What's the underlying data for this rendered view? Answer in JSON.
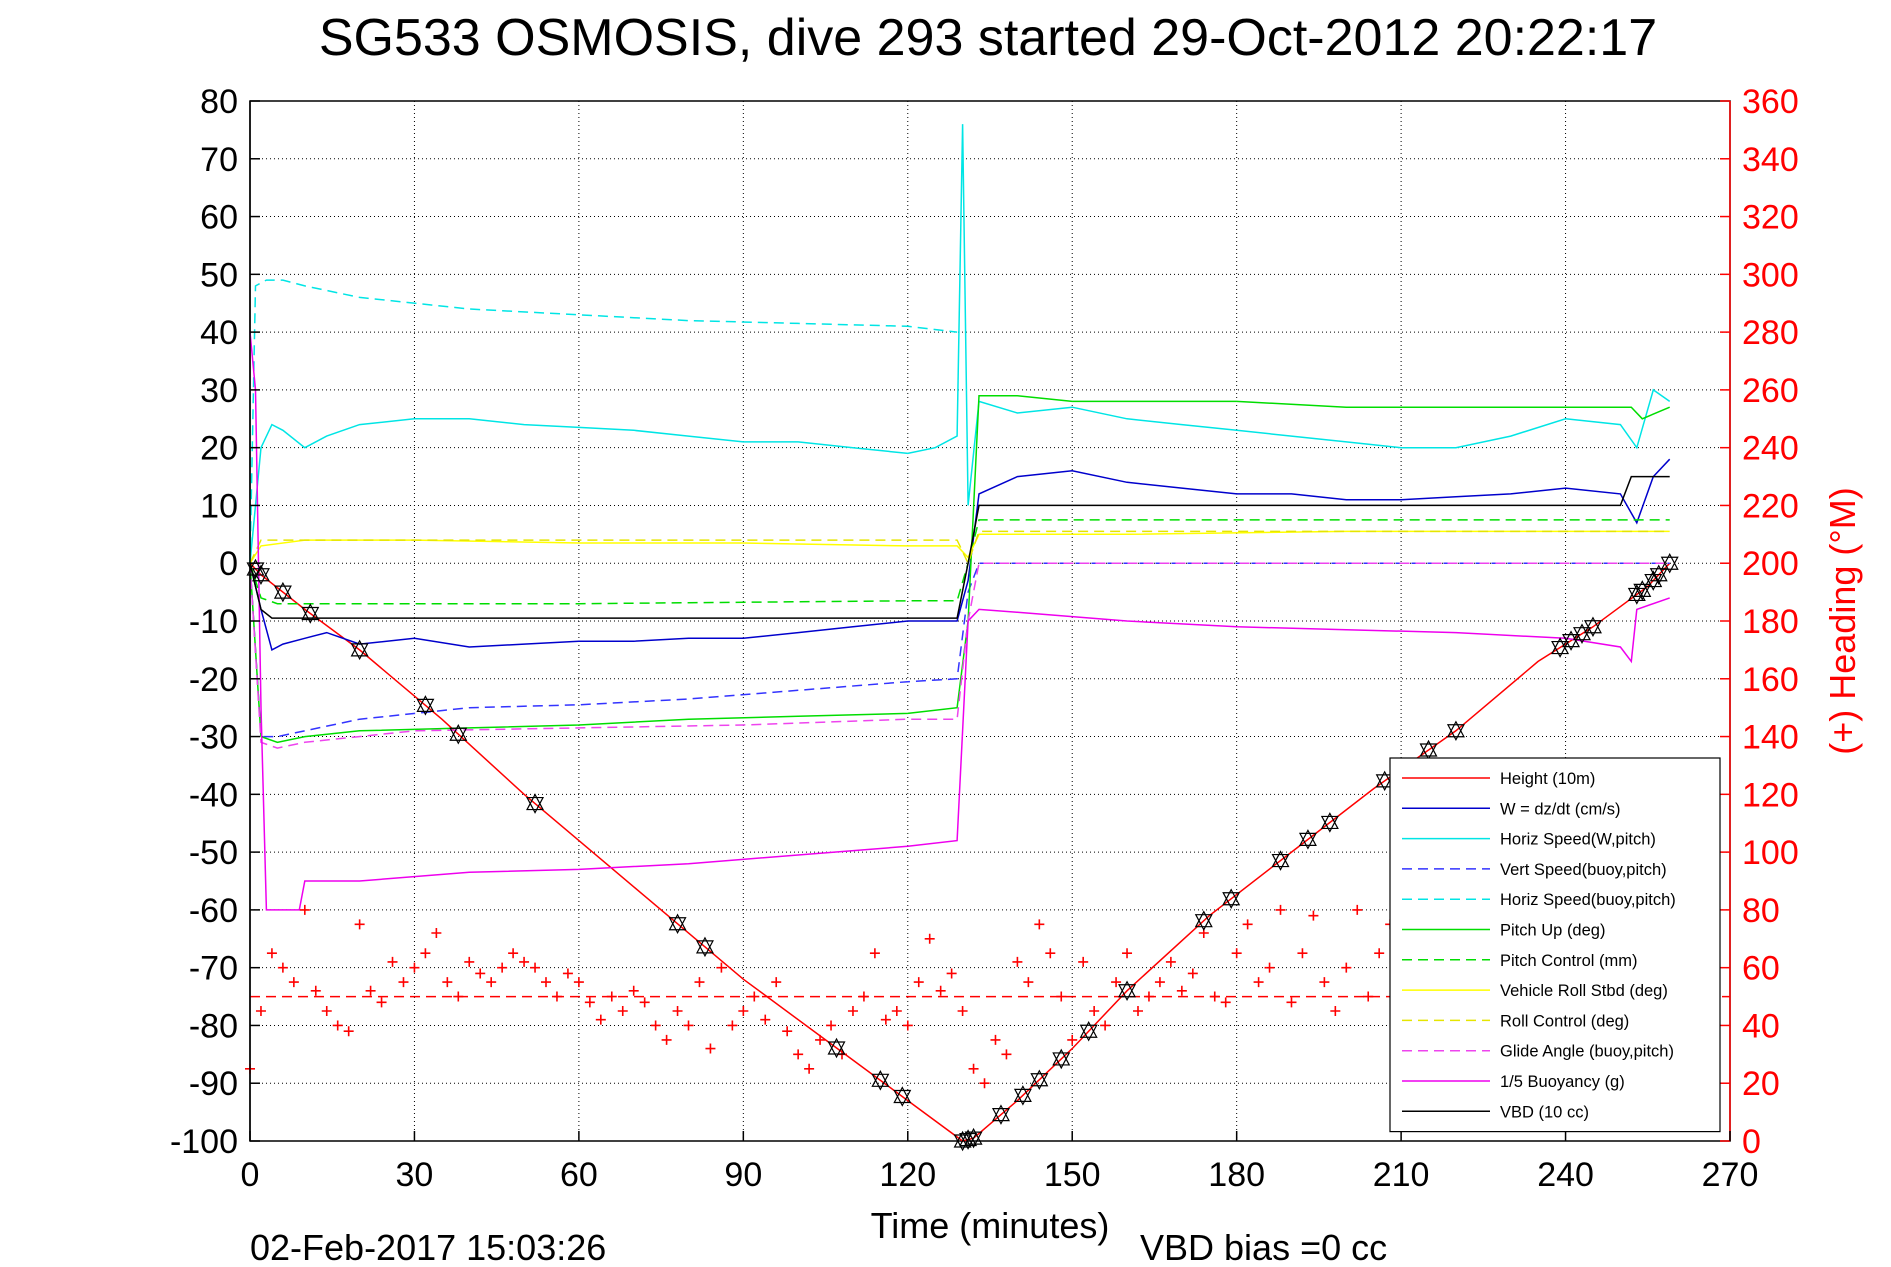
{
  "chart_data": {
    "type": "line",
    "title": "SG533 OSMOSIS, dive 293 started 29-Oct-2012 20:22:17",
    "xlabel": "Time (minutes)",
    "ylabel": "",
    "y2label": "(+) Heading (°M)",
    "xlim": [
      0,
      270
    ],
    "ylim": [
      -100,
      80
    ],
    "y2lim": [
      0,
      360
    ],
    "xticks": [
      0,
      30,
      60,
      90,
      120,
      150,
      180,
      210,
      240,
      270
    ],
    "yticks": [
      80,
      70,
      60,
      50,
      40,
      30,
      20,
      10,
      0,
      -10,
      -20,
      -30,
      -40,
      -50,
      -60,
      -70,
      -80,
      -90,
      -100
    ],
    "y2ticks": [
      360,
      340,
      320,
      300,
      280,
      260,
      240,
      220,
      200,
      180,
      160,
      140,
      120,
      100,
      80,
      60,
      40,
      20,
      0
    ],
    "grid": true,
    "legend_position": "bottom-right",
    "colors": {
      "height": "#ff0000",
      "w": "#0000cc",
      "horiz_speed": "#00e5e5",
      "vert_speed_buoy": "#3333ff",
      "horiz_speed_buoy": "#00e5e5",
      "pitch": "#00dd00",
      "pitch_control": "#00dd00",
      "roll": "#ffff00",
      "roll_control": "#e5e500",
      "glide_angle": "#ee44ee",
      "buoyancy": "#ee00ee",
      "vbd": "#000000",
      "heading": "#ff0000"
    },
    "series": [
      {
        "name": "Height (10m)",
        "style": "solid",
        "color": "#ff0000",
        "x": [
          0,
          2,
          10,
          20,
          35,
          50,
          70,
          90,
          110,
          120,
          130,
          132,
          140,
          150,
          160,
          175,
          190,
          205,
          220,
          235,
          245,
          255,
          259
        ],
        "y": [
          0,
          -2,
          -8,
          -15,
          -27,
          -40,
          -56,
          -72,
          -86,
          -93,
          -100,
          -99.5,
          -93,
          -84,
          -74,
          -61,
          -50,
          -39,
          -29,
          -17,
          -11,
          -4,
          0
        ]
      },
      {
        "name": "W = dz/dt (cm/s)",
        "style": "solid",
        "color": "#0000cc",
        "x": [
          0,
          2,
          4,
          6,
          10,
          14,
          20,
          30,
          40,
          50,
          60,
          70,
          80,
          90,
          100,
          110,
          120,
          129,
          131,
          133,
          140,
          150,
          160,
          170,
          180,
          190,
          200,
          210,
          220,
          230,
          240,
          250,
          253,
          256,
          259
        ],
        "y": [
          0,
          -8,
          -15,
          -14,
          -13,
          -12,
          -14,
          -13,
          -14.5,
          -14,
          -13.5,
          -13.5,
          -13,
          -13,
          -12,
          -11,
          -10,
          -10,
          -3,
          12,
          15,
          16,
          14,
          13,
          12,
          12,
          11,
          11,
          11.5,
          12,
          13,
          12,
          7,
          15,
          18
        ]
      },
      {
        "name": "Horiz Speed(W,pitch)",
        "style": "solid",
        "color": "#00e5e5",
        "x": [
          0,
          2,
          4,
          6,
          10,
          14,
          20,
          30,
          40,
          50,
          60,
          70,
          80,
          90,
          100,
          110,
          120,
          125,
          129,
          130,
          131,
          133,
          140,
          150,
          160,
          170,
          180,
          190,
          200,
          210,
          220,
          230,
          240,
          250,
          253,
          256,
          259
        ],
        "y": [
          0,
          20,
          24,
          23,
          20,
          22,
          24,
          25,
          25,
          24,
          23.5,
          23,
          22,
          21,
          21,
          20,
          19,
          20,
          22,
          76,
          10,
          28,
          26,
          27,
          25,
          24,
          23,
          22,
          21,
          20,
          20,
          22,
          25,
          24,
          20,
          30,
          28
        ]
      },
      {
        "name": "Vert Speed(buoy,pitch)",
        "style": "dashed",
        "color": "#3333ff",
        "x": [
          0,
          2,
          5,
          10,
          20,
          40,
          60,
          80,
          100,
          120,
          129,
          131,
          133,
          259
        ],
        "y": [
          0,
          -30,
          -30,
          -29,
          -27,
          -25,
          -24.5,
          -23.5,
          -22,
          -20.5,
          -20,
          -5,
          0,
          0
        ]
      },
      {
        "name": "Horiz Speed(buoy,pitch)",
        "style": "dashed",
        "color": "#00e5e5",
        "x": [
          0,
          1,
          3,
          6,
          10,
          20,
          40,
          60,
          80,
          100,
          120,
          129
        ],
        "y": [
          0,
          48,
          49,
          49,
          48,
          46,
          44,
          43,
          42,
          41.5,
          41,
          40
        ]
      },
      {
        "name": "Pitch Up (deg)",
        "style": "solid",
        "color": "#00dd00",
        "x": [
          0,
          2,
          5,
          10,
          20,
          40,
          60,
          80,
          100,
          120,
          129,
          131,
          133,
          140,
          150,
          160,
          180,
          200,
          220,
          240,
          252,
          254,
          259
        ],
        "y": [
          0,
          -30,
          -31,
          -30,
          -29,
          -28.5,
          -28,
          -27,
          -26.5,
          -26,
          -25,
          -10,
          29,
          29,
          28,
          28,
          28,
          27,
          27,
          27,
          27,
          25,
          27
        ]
      },
      {
        "name": "Pitch Control (mm)",
        "style": "dashed",
        "color": "#00dd00",
        "x": [
          0,
          2,
          5,
          10,
          60,
          120,
          129,
          131,
          133,
          259
        ],
        "y": [
          0,
          -6,
          -7,
          -7,
          -7,
          -6.5,
          -6.5,
          0,
          7.5,
          7.5
        ]
      },
      {
        "name": "Vehicle Roll Stbd (deg)",
        "style": "solid",
        "color": "#ffff00",
        "x": [
          0,
          2,
          10,
          30,
          60,
          90,
          120,
          129,
          131,
          133,
          160,
          200,
          240,
          259
        ],
        "y": [
          0,
          3,
          4,
          4,
          3.5,
          3.5,
          3,
          3,
          1,
          5,
          5,
          5.5,
          5.5,
          5.5
        ]
      },
      {
        "name": "Roll Control (deg)",
        "style": "dashed",
        "color": "#e5e500",
        "x": [
          0,
          2,
          10,
          60,
          120,
          129,
          131,
          133,
          259
        ],
        "y": [
          0,
          4,
          4,
          4,
          4,
          4,
          0,
          5.5,
          5.5
        ]
      },
      {
        "name": "Glide Angle (buoy,pitch)",
        "style": "dashed",
        "color": "#ee44ee",
        "x": [
          0,
          2,
          5,
          10,
          30,
          60,
          90,
          120,
          129,
          131,
          133,
          259
        ],
        "y": [
          0,
          -31,
          -32,
          -31,
          -29,
          -28.5,
          -28,
          -27,
          -27,
          -10,
          0,
          0
        ]
      },
      {
        "name": "1/5 Buoyancy (g)",
        "style": "solid",
        "color": "#ee00ee",
        "x": [
          0,
          1,
          2,
          3,
          4,
          9,
          10,
          20,
          40,
          60,
          80,
          100,
          120,
          129,
          131,
          133,
          140,
          160,
          180,
          200,
          220,
          240,
          250,
          252,
          253,
          259
        ],
        "y": [
          40,
          30,
          -25,
          -60,
          -60,
          -60,
          -55,
          -55,
          -53.5,
          -53,
          -52,
          -50.5,
          -49,
          -48,
          -10,
          -8,
          -8.5,
          -10,
          -11,
          -11.5,
          -12,
          -13,
          -14.5,
          -17,
          -8,
          -6
        ]
      },
      {
        "name": "VBD (10 cc)",
        "style": "solid",
        "color": "#000000",
        "x": [
          0,
          2,
          4,
          6,
          60,
          120,
          129,
          131,
          133,
          250,
          252,
          259
        ],
        "y": [
          0,
          -8,
          -9.5,
          -9.5,
          -9.5,
          -9.5,
          -9.5,
          0,
          10,
          10,
          15,
          15
        ]
      },
      {
        "name": "Heading",
        "axis": "right",
        "style": "plus-markers",
        "color": "#ff0000",
        "x": [
          0,
          2,
          4,
          6,
          8,
          10,
          12,
          14,
          16,
          18,
          20,
          22,
          24,
          26,
          28,
          30,
          32,
          34,
          36,
          38,
          40,
          42,
          44,
          46,
          48,
          50,
          52,
          54,
          56,
          58,
          60,
          62,
          64,
          66,
          68,
          70,
          72,
          74,
          76,
          78,
          80,
          82,
          84,
          86,
          88,
          90,
          92,
          94,
          96,
          98,
          100,
          102,
          104,
          106,
          108,
          110,
          112,
          114,
          116,
          118,
          120,
          122,
          124,
          126,
          128,
          130,
          132,
          134,
          136,
          138,
          140,
          142,
          144,
          146,
          148,
          150,
          152,
          154,
          156,
          158,
          160,
          162,
          164,
          166,
          168,
          170,
          172,
          174,
          176,
          178,
          180,
          182,
          184,
          186,
          188,
          190,
          192,
          194,
          196,
          198,
          200,
          202,
          204,
          206,
          208,
          210,
          212,
          214,
          216,
          218,
          220,
          222,
          224,
          226,
          228,
          230,
          232,
          234,
          236,
          238,
          240,
          242,
          244,
          246,
          248,
          250,
          252,
          254,
          256,
          258
        ],
        "y": [
          25,
          45,
          65,
          60,
          55,
          80,
          52,
          45,
          40,
          38,
          75,
          52,
          48,
          62,
          55,
          60,
          65,
          72,
          55,
          50,
          62,
          58,
          55,
          60,
          65,
          62,
          60,
          55,
          50,
          58,
          55,
          48,
          42,
          50,
          45,
          52,
          48,
          40,
          35,
          45,
          40,
          55,
          32,
          60,
          40,
          45,
          50,
          42,
          55,
          38,
          30,
          25,
          35,
          40,
          30,
          45,
          50,
          65,
          42,
          45,
          40,
          55,
          70,
          52,
          58,
          45,
          25,
          20,
          35,
          30,
          62,
          55,
          75,
          65,
          50,
          35,
          62,
          45,
          40,
          55,
          65,
          45,
          50,
          55,
          62,
          52,
          58,
          72,
          50,
          48,
          65,
          75,
          55,
          60,
          80,
          48,
          65,
          78,
          55,
          45,
          60,
          80,
          50,
          65,
          75,
          55,
          45,
          60,
          55,
          62,
          55,
          70,
          50,
          45,
          60,
          72,
          55,
          45,
          48,
          60,
          65,
          75,
          62,
          70,
          55,
          60,
          20,
          65,
          30,
          50
        ]
      },
      {
        "name": "Heading (mean)",
        "axis": "right",
        "style": "dashed",
        "color": "#ff0000",
        "x": [
          0,
          270
        ],
        "y": [
          50,
          50
        ]
      }
    ],
    "triangle_markers_on": "Height (10m)",
    "triangle_marker_x": [
      1,
      2,
      6,
      11,
      20,
      32,
      38,
      52,
      78,
      83,
      107,
      115,
      119,
      130,
      131,
      132,
      137,
      141,
      144,
      148,
      153,
      160,
      174,
      179,
      188,
      193,
      197,
      207,
      215,
      220,
      239,
      241,
      243,
      245,
      253,
      254,
      256,
      257,
      259
    ]
  },
  "footer": {
    "date": "02-Feb-2017 15:03:26",
    "vbd_bias": "VBD bias =0 cc"
  }
}
